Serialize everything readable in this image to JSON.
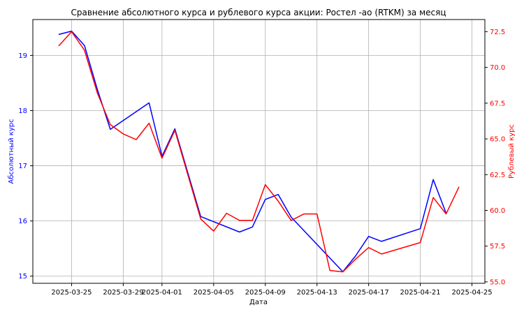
{
  "chart_data": {
    "type": "line",
    "title": "Сравнение абсолютного курса и рублевого курса акции: Ростел -ао (RTKM) за месяц",
    "xlabel": "Дата",
    "ylabel_left": "Абсолютный курс",
    "ylabel_right": "Рублевый курс",
    "grid": true,
    "x_ticks": [
      "2025-03-25",
      "2025-03-29",
      "2025-04-01",
      "2025-04-05",
      "2025-04-09",
      "2025-04-13",
      "2025-04-17",
      "2025-04-21",
      "2025-04-25"
    ],
    "left_axis": {
      "ylim": [
        14.87,
        19.65
      ],
      "ticks": [
        "15",
        "16",
        "17",
        "18",
        "19"
      ],
      "color": "#0000ff"
    },
    "right_axis": {
      "ylim": [
        54.9,
        73.35
      ],
      "ticks": [
        "55.0",
        "57.5",
        "60.0",
        "62.5",
        "65.0",
        "67.5",
        "70.0",
        "72.5"
      ],
      "color": "#ff0000"
    },
    "series": [
      {
        "axis": "left",
        "color": "#0000ff",
        "points": [
          [
            "2025-03-24",
            19.38
          ],
          [
            "2025-03-25",
            19.44
          ],
          [
            "2025-03-26",
            19.18
          ],
          [
            "2025-03-27",
            18.38
          ],
          [
            "2025-03-28",
            17.66
          ],
          [
            "2025-03-31",
            18.14
          ],
          [
            "2025-04-01",
            17.17
          ],
          [
            "2025-04-02",
            17.67
          ],
          [
            "2025-04-04",
            16.08
          ],
          [
            "2025-04-07",
            15.8
          ],
          [
            "2025-04-08",
            15.89
          ],
          [
            "2025-04-09",
            16.39
          ],
          [
            "2025-04-10",
            16.48
          ],
          [
            "2025-04-11",
            16.07
          ],
          [
            "2025-04-15",
            15.08
          ],
          [
            "2025-04-16",
            15.37
          ],
          [
            "2025-04-17",
            15.72
          ],
          [
            "2025-04-18",
            15.63
          ],
          [
            "2025-04-21",
            15.86
          ],
          [
            "2025-04-22",
            16.75
          ],
          [
            "2025-04-23",
            16.14
          ]
        ]
      },
      {
        "axis": "right",
        "color": "#ff0000",
        "points": [
          [
            "2025-03-24",
            71.5
          ],
          [
            "2025-03-25",
            72.5
          ],
          [
            "2025-03-26",
            71.2
          ],
          [
            "2025-03-27",
            68.2
          ],
          [
            "2025-03-28",
            66.0
          ],
          [
            "2025-03-29",
            65.35
          ],
          [
            "2025-03-30",
            64.95
          ],
          [
            "2025-03-31",
            66.1
          ],
          [
            "2025-04-01",
            63.65
          ],
          [
            "2025-04-02",
            65.6
          ],
          [
            "2025-04-04",
            59.4
          ],
          [
            "2025-04-05",
            58.55
          ],
          [
            "2025-04-06",
            59.8
          ],
          [
            "2025-04-07",
            59.3
          ],
          [
            "2025-04-08",
            59.3
          ],
          [
            "2025-04-09",
            61.8
          ],
          [
            "2025-04-10",
            60.65
          ],
          [
            "2025-04-11",
            59.3
          ],
          [
            "2025-04-12",
            59.75
          ],
          [
            "2025-04-13",
            59.75
          ],
          [
            "2025-04-14",
            55.8
          ],
          [
            "2025-04-15",
            55.7
          ],
          [
            "2025-04-16",
            56.6
          ],
          [
            "2025-04-17",
            57.4
          ],
          [
            "2025-04-18",
            56.95
          ],
          [
            "2025-04-21",
            57.75
          ],
          [
            "2025-04-22",
            60.9
          ],
          [
            "2025-04-23",
            59.75
          ],
          [
            "2025-04-24",
            61.65
          ]
        ]
      }
    ]
  }
}
